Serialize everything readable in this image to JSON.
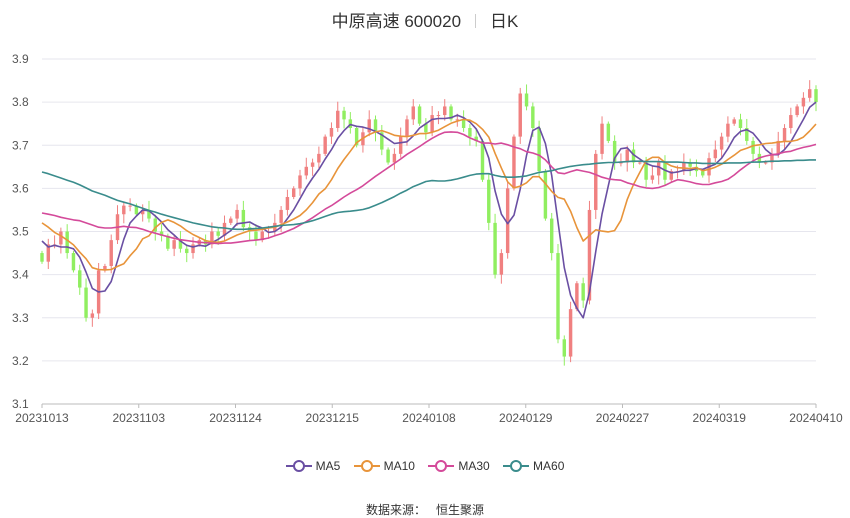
{
  "header": {
    "name": "中原高速 600020",
    "period": "日K"
  },
  "source": {
    "label": "数据来源：",
    "value": "恒生聚源"
  },
  "legend": [
    {
      "key": "ma5",
      "label": "MA5",
      "color": "#6a4fa3"
    },
    {
      "key": "ma10",
      "label": "MA10",
      "color": "#e8943a"
    },
    {
      "key": "ma30",
      "label": "MA30",
      "color": "#d44a9a"
    },
    {
      "key": "ma60",
      "label": "MA60",
      "color": "#3a8c8c"
    }
  ],
  "chart_data": {
    "type": "candlestick",
    "title": "中原高速 600020",
    "subtitle": "日K",
    "ylim": [
      3.1,
      3.9
    ],
    "yticks": [
      3.1,
      3.2,
      3.3,
      3.4,
      3.5,
      3.6,
      3.7,
      3.8,
      3.9
    ],
    "xticks": [
      "20231013",
      "20231103",
      "20231124",
      "20231215",
      "20240108",
      "20240129",
      "20240227",
      "20240319",
      "20240410"
    ],
    "grid": true,
    "legend_position": "bottom",
    "colors": {
      "up": "#f08080",
      "down": "#90ee60"
    },
    "closes": [
      3.43,
      3.47,
      3.47,
      3.5,
      3.45,
      3.41,
      3.37,
      3.3,
      3.31,
      3.41,
      3.42,
      3.48,
      3.54,
      3.56,
      3.56,
      3.54,
      3.55,
      3.53,
      3.5,
      3.49,
      3.46,
      3.48,
      3.46,
      3.45,
      3.47,
      3.48,
      3.47,
      3.5,
      3.49,
      3.52,
      3.53,
      3.55,
      3.51,
      3.5,
      3.48,
      3.5,
      3.5,
      3.52,
      3.55,
      3.58,
      3.6,
      3.63,
      3.65,
      3.66,
      3.68,
      3.72,
      3.74,
      3.78,
      3.76,
      3.74,
      3.7,
      3.73,
      3.76,
      3.73,
      3.69,
      3.66,
      3.68,
      3.72,
      3.76,
      3.79,
      3.75,
      3.73,
      3.77,
      3.77,
      3.79,
      3.76,
      3.76,
      3.74,
      3.72,
      3.71,
      3.62,
      3.52,
      3.4,
      3.45,
      3.6,
      3.72,
      3.82,
      3.79,
      3.74,
      3.64,
      3.53,
      3.45,
      3.25,
      3.21,
      3.32,
      3.38,
      3.34,
      3.55,
      3.68,
      3.75,
      3.71,
      3.66,
      3.66,
      3.69,
      3.66,
      3.66,
      3.62,
      3.63,
      3.66,
      3.62,
      3.64,
      3.64,
      3.66,
      3.65,
      3.64,
      3.63,
      3.67,
      3.69,
      3.72,
      3.75,
      3.76,
      3.74,
      3.71,
      3.68,
      3.66,
      3.66,
      3.68,
      3.71,
      3.74,
      3.77,
      3.79,
      3.81,
      3.83,
      3.8
    ],
    "series": [
      {
        "name": "MA5",
        "values": [
          3.478,
          3.464,
          3.468,
          3.464,
          3.464,
          3.46,
          3.44,
          3.406,
          3.368,
          3.36,
          3.362,
          3.384,
          3.432,
          3.482,
          3.52,
          3.536,
          3.55,
          3.548,
          3.536,
          3.522,
          3.504,
          3.492,
          3.478,
          3.468,
          3.464,
          3.468,
          3.466,
          3.474,
          3.482,
          3.492,
          3.502,
          3.518,
          3.52,
          3.522,
          3.514,
          3.508,
          3.498,
          3.5,
          3.51,
          3.53,
          3.55,
          3.576,
          3.602,
          3.624,
          3.644,
          3.668,
          3.69,
          3.716,
          3.734,
          3.748,
          3.744,
          3.742,
          3.738,
          3.732,
          3.724,
          3.714,
          3.704,
          3.706,
          3.708,
          3.722,
          3.74,
          3.75,
          3.76,
          3.762,
          3.762,
          3.764,
          3.77,
          3.764,
          3.754,
          3.738,
          3.71,
          3.67,
          3.594,
          3.54,
          3.518,
          3.538,
          3.598,
          3.676,
          3.734,
          3.742,
          3.704,
          3.63,
          3.522,
          3.416,
          3.352,
          3.322,
          3.3,
          3.36,
          3.454,
          3.54,
          3.606,
          3.67,
          3.692,
          3.694,
          3.678,
          3.668,
          3.658,
          3.652,
          3.65,
          3.642,
          3.636,
          3.638,
          3.642,
          3.642,
          3.646,
          3.644,
          3.65,
          3.656,
          3.67,
          3.692,
          3.718,
          3.732,
          3.736,
          3.728,
          3.71,
          3.69,
          3.678,
          3.678,
          3.69,
          3.708,
          3.734,
          3.76,
          3.788,
          3.8
        ]
      },
      {
        "name": "MA10",
        "values": [
          3.52,
          3.51,
          3.498,
          3.49,
          3.48,
          3.469,
          3.452,
          3.437,
          3.416,
          3.412,
          3.411,
          3.412,
          3.419,
          3.425,
          3.444,
          3.46,
          3.483,
          3.49,
          3.509,
          3.521,
          3.527,
          3.521,
          3.513,
          3.502,
          3.493,
          3.486,
          3.479,
          3.476,
          3.475,
          3.478,
          3.485,
          3.492,
          3.497,
          3.502,
          3.503,
          3.505,
          3.508,
          3.51,
          3.516,
          3.522,
          3.529,
          3.537,
          3.55,
          3.567,
          3.587,
          3.599,
          3.62,
          3.646,
          3.667,
          3.686,
          3.706,
          3.716,
          3.725,
          3.731,
          3.734,
          3.729,
          3.723,
          3.721,
          3.72,
          3.723,
          3.727,
          3.727,
          3.73,
          3.735,
          3.743,
          3.751,
          3.756,
          3.76,
          3.758,
          3.75,
          3.737,
          3.719,
          3.681,
          3.647,
          3.615,
          3.601,
          3.605,
          3.613,
          3.627,
          3.627,
          3.611,
          3.593,
          3.579,
          3.575,
          3.547,
          3.509,
          3.478,
          3.491,
          3.504,
          3.501,
          3.499,
          3.502,
          3.526,
          3.574,
          3.609,
          3.637,
          3.664,
          3.672,
          3.672,
          3.66,
          3.652,
          3.648,
          3.647,
          3.646,
          3.648,
          3.641,
          3.644,
          3.649,
          3.656,
          3.667,
          3.677,
          3.688,
          3.693,
          3.699,
          3.701,
          3.704,
          3.705,
          3.707,
          3.709,
          3.709,
          3.712,
          3.719,
          3.733,
          3.749
        ]
      },
      {
        "name": "MA30",
        "values": [
          3.543,
          3.54,
          3.537,
          3.533,
          3.53,
          3.527,
          3.525,
          3.52,
          3.515,
          3.51,
          3.508,
          3.508,
          3.51,
          3.512,
          3.51,
          3.509,
          3.505,
          3.5,
          3.496,
          3.492,
          3.488,
          3.484,
          3.481,
          3.479,
          3.477,
          3.475,
          3.474,
          3.473,
          3.472,
          3.473,
          3.473,
          3.475,
          3.477,
          3.479,
          3.48,
          3.482,
          3.485,
          3.49,
          3.495,
          3.501,
          3.507,
          3.515,
          3.523,
          3.532,
          3.542,
          3.552,
          3.56,
          3.57,
          3.58,
          3.589,
          3.597,
          3.606,
          3.617,
          3.628,
          3.638,
          3.648,
          3.658,
          3.668,
          3.679,
          3.688,
          3.697,
          3.707,
          3.716,
          3.724,
          3.73,
          3.731,
          3.73,
          3.725,
          3.717,
          3.711,
          3.705,
          3.705,
          3.703,
          3.705,
          3.701,
          3.696,
          3.692,
          3.685,
          3.682,
          3.677,
          3.666,
          3.65,
          3.636,
          3.634,
          3.639,
          3.643,
          3.64,
          3.637,
          3.632,
          3.626,
          3.622,
          3.62,
          3.619,
          3.613,
          3.609,
          3.604,
          3.601,
          3.6,
          3.602,
          3.607,
          3.614,
          3.62,
          3.618,
          3.615,
          3.611,
          3.609,
          3.609,
          3.613,
          3.616,
          3.621,
          3.631,
          3.643,
          3.654,
          3.664,
          3.671,
          3.675,
          3.678,
          3.68,
          3.684,
          3.686,
          3.691,
          3.695,
          3.698,
          3.702
        ]
      },
      {
        "name": "MA60",
        "values": [
          3.638,
          3.634,
          3.629,
          3.624,
          3.619,
          3.614,
          3.608,
          3.601,
          3.594,
          3.589,
          3.584,
          3.578,
          3.572,
          3.568,
          3.564,
          3.559,
          3.554,
          3.549,
          3.545,
          3.54,
          3.536,
          3.532,
          3.528,
          3.524,
          3.52,
          3.517,
          3.514,
          3.511,
          3.509,
          3.508,
          3.506,
          3.505,
          3.505,
          3.506,
          3.507,
          3.508,
          3.51,
          3.512,
          3.514,
          3.515,
          3.516,
          3.518,
          3.521,
          3.525,
          3.53,
          3.535,
          3.54,
          3.544,
          3.546,
          3.547,
          3.549,
          3.551,
          3.555,
          3.561,
          3.567,
          3.574,
          3.581,
          3.589,
          3.596,
          3.604,
          3.61,
          3.616,
          3.618,
          3.617,
          3.617,
          3.619,
          3.622,
          3.626,
          3.63,
          3.633,
          3.634,
          3.634,
          3.63,
          3.627,
          3.626,
          3.626,
          3.627,
          3.629,
          3.633,
          3.637,
          3.639,
          3.641,
          3.645,
          3.648,
          3.651,
          3.653,
          3.655,
          3.656,
          3.658,
          3.659,
          3.66,
          3.66,
          3.661,
          3.662,
          3.663,
          3.663,
          3.662,
          3.662,
          3.662,
          3.661,
          3.661,
          3.661,
          3.66,
          3.659,
          3.659,
          3.658,
          3.658,
          3.658,
          3.658,
          3.659,
          3.659,
          3.659,
          3.66,
          3.661,
          3.661,
          3.662,
          3.663,
          3.663,
          3.664,
          3.664,
          3.665,
          3.665,
          3.666,
          3.666
        ]
      }
    ]
  }
}
